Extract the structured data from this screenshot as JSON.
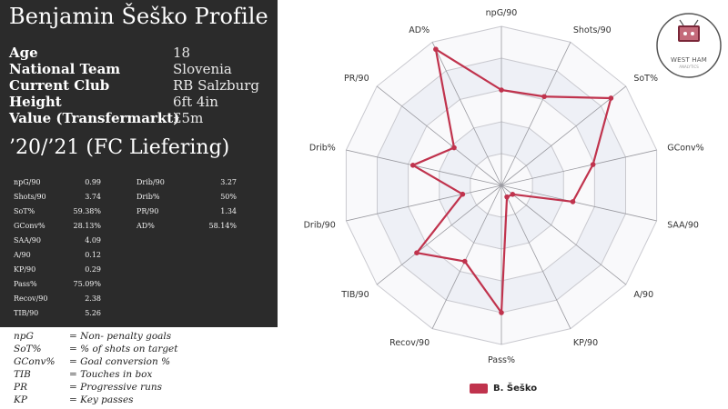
{
  "profile": {
    "title": "Benjamin Šeško Profile",
    "info": [
      {
        "label": "Age",
        "value": "18"
      },
      {
        "label": "National Team",
        "value": "Slovenia"
      },
      {
        "label": "Current Club",
        "value": "RB Salzburg"
      },
      {
        "label": "Height",
        "value": "6ft 4in"
      },
      {
        "label": "Value (Transfermarkt)",
        "value": "£5m"
      }
    ],
    "season_title": "’20/’21 (FC Liefering)",
    "stats_left": [
      {
        "label": "npG/90",
        "value": "0.99"
      },
      {
        "label": "Shots/90",
        "value": "3.74"
      },
      {
        "label": "SoT%",
        "value": "59.38%"
      },
      {
        "label": "GConv%",
        "value": "28.13%"
      },
      {
        "label": "SAA/90",
        "value": "4.09"
      },
      {
        "label": "A/90",
        "value": "0.12"
      },
      {
        "label": "KP/90",
        "value": "0.29"
      },
      {
        "label": "Pass%",
        "value": "75.09%"
      },
      {
        "label": "Recov/90",
        "value": "2.38"
      },
      {
        "label": "TIB/90",
        "value": "5.26"
      }
    ],
    "stats_right": [
      {
        "label": "Drib/90",
        "value": "3.27"
      },
      {
        "label": "Drib%",
        "value": "50%"
      },
      {
        "label": "PR/90",
        "value": "1.34"
      },
      {
        "label": "AD%",
        "value": "58.14%"
      }
    ]
  },
  "key": [
    {
      "abbr": "npG",
      "def": "= Non- penalty goals"
    },
    {
      "abbr": "SoT%",
      "def": "= % of shots on target"
    },
    {
      "abbr": "GConv%",
      "def": "= Goal conversion %"
    },
    {
      "abbr": "TIB",
      "def": "= Touches in box"
    },
    {
      "abbr": "PR",
      "def": "= Progressive runs"
    },
    {
      "abbr": "KP",
      "def": "= Key passes"
    }
  ],
  "logo": {
    "text": "WEST HAM",
    "sub": "ANALYTICS",
    "icon": "west-ham-analytics-logo"
  },
  "chart_data": {
    "type": "radar",
    "axes": [
      "npG/90",
      "Shots/90",
      "SoT%",
      "GConv%",
      "SAA/90",
      "A/90",
      "KP/90",
      "Pass%",
      "Recov/90",
      "TIB/90",
      "Drib/90",
      "Drib%",
      "PR/90",
      "AD%"
    ],
    "scale": [
      0,
      1
    ],
    "rings": 5,
    "grid": true,
    "series": [
      {
        "name": "B. Šeško",
        "color": "#c0334d",
        "values": [
          0.6,
          0.62,
          0.88,
          0.59,
          0.46,
          0.09,
          0.08,
          0.8,
          0.53,
          0.68,
          0.25,
          0.57,
          0.38,
          0.95
        ]
      }
    ],
    "legend_position": "bottom-center"
  }
}
